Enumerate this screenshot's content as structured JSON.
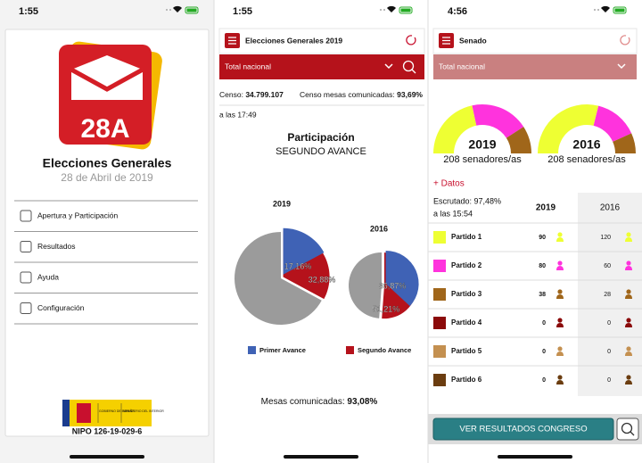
{
  "screens": [
    {
      "status_time": "1:55",
      "logo_text": "28A",
      "title": "Elecciones Generales",
      "subtitle": "28 de Abril de 2019",
      "menu": [
        "Apertura y Participación",
        "Resultados",
        "Ayuda",
        "Configuración"
      ],
      "gov_labels": [
        "GOBIERNO DE ESPAÑA",
        "MINISTERIO DEL INTERIOR"
      ],
      "footer": "NIPO 126-19-029-6"
    },
    {
      "status_time": "1:55",
      "header": "Elecciones Generales 2019",
      "selector": "Total nacional",
      "censo_label": "Censo:",
      "censo_value": "34.799.107",
      "mesas_censo_label": "Censo mesas comunicadas:",
      "mesas_censo_value": "93,69%",
      "time": "a las 17:49",
      "chart_title": "Participación",
      "chart_subtitle": "SEGUNDO AVANCE",
      "pies": [
        {
          "year": "2019",
          "values": [
            17.16,
            32.88
          ],
          "value_labels": [
            "17,16%",
            "32,88%"
          ]
        },
        {
          "year": "2016",
          "values": [
            36.87,
            51.21
          ],
          "value_labels": [
            "36,87%",
            "51,21%"
          ]
        }
      ],
      "legend": [
        {
          "name": "Primer Avance",
          "color": "#3f62b5"
        },
        {
          "name": "Segundo Avance",
          "color": "#b5121b"
        }
      ],
      "mesas_label": "Mesas comunicadas:",
      "mesas_value": "93,08%"
    },
    {
      "status_time": "4:56",
      "header": "Senado",
      "selector": "Total nacional",
      "gauges": [
        {
          "year": "2019",
          "caption": "208 senadores/as"
        },
        {
          "year": "2016",
          "caption": "208 senadores/as"
        }
      ],
      "more": "+ Datos",
      "scrutiny": "Escrutado: 97,48%",
      "time": "a las 15:54",
      "table": {
        "columns": [
          "2019",
          "2016"
        ],
        "rows": [
          {
            "name": "Partido 1",
            "color": "#eeff33",
            "values": [
              90,
              120
            ]
          },
          {
            "name": "Partido 2",
            "color": "#ff33dd",
            "values": [
              80,
              60
            ]
          },
          {
            "name": "Partido 3",
            "color": "#a0661a",
            "values": [
              38,
              28
            ]
          },
          {
            "name": "Partido 4",
            "color": "#8b0a0a",
            "values": [
              0,
              0
            ]
          },
          {
            "name": "Partido 5",
            "color": "#c49050",
            "values": [
              0,
              0
            ]
          },
          {
            "name": "Partido 6",
            "color": "#6b3d10",
            "values": [
              0,
              0
            ]
          }
        ]
      },
      "button": "VER RESULTADOS CONGRESO"
    }
  ]
}
